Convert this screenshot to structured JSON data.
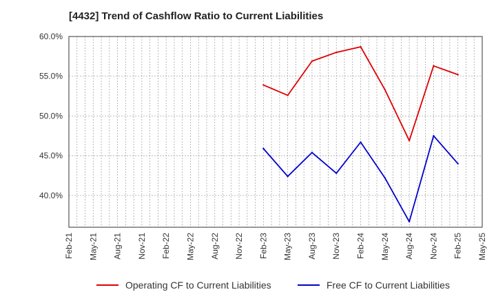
{
  "chart_data": {
    "type": "line",
    "title": "[4432]  Trend of Cashflow Ratio to Current Liabilities",
    "xlabel": "",
    "ylabel": "",
    "categories": [
      "Feb-21",
      "May-21",
      "Aug-21",
      "Nov-21",
      "Feb-22",
      "May-22",
      "Aug-22",
      "Nov-22",
      "Feb-23",
      "May-23",
      "Aug-23",
      "Nov-23",
      "Feb-24",
      "May-24",
      "Aug-24",
      "Nov-24",
      "Feb-25",
      "May-25"
    ],
    "ylim": [
      36,
      60
    ],
    "yticks": [
      40,
      45,
      50,
      55,
      60
    ],
    "ytick_labels": [
      "40.0%",
      "45.0%",
      "50.0%",
      "55.0%",
      "60.0%"
    ],
    "grid": true,
    "legend_position": "bottom",
    "series": [
      {
        "name": "Operating CF to Current Liabilities",
        "color": "#dd0000",
        "values": [
          null,
          null,
          null,
          null,
          null,
          null,
          null,
          null,
          53.9,
          52.6,
          56.9,
          58.0,
          58.7,
          53.3,
          46.9,
          56.3,
          55.2,
          null
        ]
      },
      {
        "name": "Free CF to Current Liabilities",
        "color": "#0000cc",
        "values": [
          null,
          null,
          null,
          null,
          null,
          null,
          null,
          null,
          45.9,
          42.4,
          45.4,
          42.8,
          46.7,
          42.2,
          36.7,
          47.5,
          44.0,
          null
        ]
      }
    ]
  }
}
